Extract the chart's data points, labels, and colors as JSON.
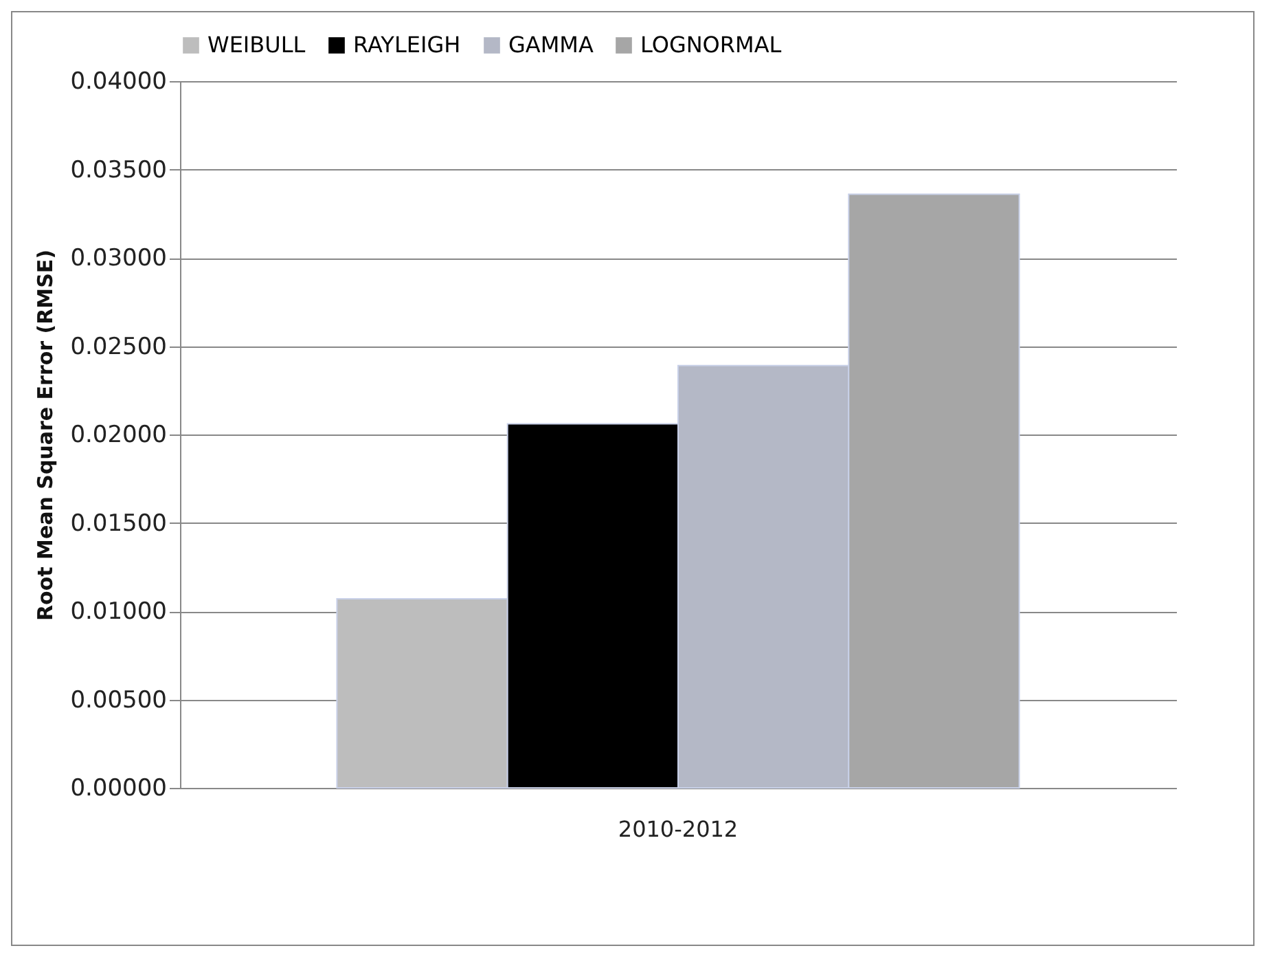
{
  "chart_data": {
    "type": "bar",
    "ylabel": "Root Mean Square Error (RMSE)",
    "categories": [
      "2010-2012"
    ],
    "series": [
      {
        "name": "WEIBULL",
        "color": "#bdbdbd",
        "values": [
          0.0107
        ]
      },
      {
        "name": "RAYLEIGH",
        "color": "#000000",
        "values": [
          0.0206
        ]
      },
      {
        "name": "GAMMA",
        "color": "#b4b8c6",
        "values": [
          0.0239
        ]
      },
      {
        "name": "LOGNORMAL",
        "color": "#a6a6a6",
        "values": [
          0.0336
        ]
      }
    ],
    "ylim": [
      0,
      0.04
    ],
    "yticks": [
      {
        "value": 0,
        "label": "0.00000"
      },
      {
        "value": 0.005,
        "label": "0.00500"
      },
      {
        "value": 0.01,
        "label": "0.01000"
      },
      {
        "value": 0.015,
        "label": "0.01500"
      },
      {
        "value": 0.02,
        "label": "0.02000"
      },
      {
        "value": 0.025,
        "label": "0.02500"
      },
      {
        "value": 0.03,
        "label": "0.03000"
      },
      {
        "value": 0.035,
        "label": "0.03500"
      },
      {
        "value": 0.04,
        "label": "0.04000"
      }
    ],
    "grid": "y",
    "legend": "top"
  }
}
